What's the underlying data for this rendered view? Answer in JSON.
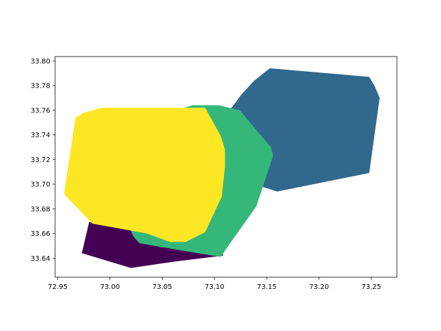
{
  "chart_data": {
    "type": "area",
    "xlim": [
      72.9475,
      73.2745
    ],
    "ylim": [
      33.6245,
      33.8035
    ],
    "xticks": [
      "72.95",
      "73.00",
      "73.05",
      "73.10",
      "73.15",
      "73.20",
      "73.25"
    ],
    "yticks": [
      "33.64",
      "33.66",
      "33.68",
      "33.70",
      "33.72",
      "33.74",
      "33.76",
      "33.78",
      "33.80"
    ],
    "grid": false,
    "polygons": [
      {
        "color": "#440154",
        "points": [
          [
            72.973,
            33.644
          ],
          [
            72.98,
            33.669
          ],
          [
            73.0,
            33.67
          ],
          [
            73.04,
            33.66
          ],
          [
            73.09,
            33.645
          ],
          [
            73.11,
            33.665
          ],
          [
            73.108,
            33.642
          ],
          [
            73.06,
            33.637
          ],
          [
            73.02,
            33.632
          ]
        ]
      },
      {
        "color": "#31688e",
        "points": [
          [
            73.095,
            33.739
          ],
          [
            73.112,
            33.757
          ],
          [
            73.126,
            33.773
          ],
          [
            73.138,
            33.784
          ],
          [
            73.153,
            33.794
          ],
          [
            73.248,
            33.787
          ],
          [
            73.253,
            33.78
          ],
          [
            73.258,
            33.77
          ],
          [
            73.248,
            33.709
          ],
          [
            73.16,
            33.694
          ],
          [
            73.145,
            33.698
          ],
          [
            73.125,
            33.709
          ],
          [
            73.108,
            33.728
          ]
        ]
      },
      {
        "color": "#35b779",
        "points": [
          [
            73.05,
            33.747
          ],
          [
            73.063,
            33.76
          ],
          [
            73.079,
            33.764
          ],
          [
            73.104,
            33.764
          ],
          [
            73.124,
            33.76
          ],
          [
            73.154,
            33.73
          ],
          [
            73.156,
            33.723
          ],
          [
            73.14,
            33.682
          ],
          [
            73.114,
            33.651
          ],
          [
            73.106,
            33.641
          ],
          [
            73.07,
            33.646
          ],
          [
            73.028,
            33.652
          ],
          [
            73.022,
            33.658
          ],
          [
            73.015,
            33.672
          ]
        ]
      },
      {
        "color": "#fde725",
        "points": [
          [
            72.967,
            33.754
          ],
          [
            72.975,
            33.758
          ],
          [
            72.992,
            33.762
          ],
          [
            73.091,
            33.762
          ],
          [
            73.106,
            33.739
          ],
          [
            73.11,
            33.728
          ],
          [
            73.11,
            33.714
          ],
          [
            73.107,
            33.69
          ],
          [
            73.091,
            33.661
          ],
          [
            73.072,
            33.653
          ],
          [
            73.058,
            33.653
          ],
          [
            73.035,
            33.66
          ],
          [
            72.983,
            33.668
          ],
          [
            72.965,
            33.684
          ],
          [
            72.956,
            33.692
          ]
        ]
      }
    ]
  }
}
